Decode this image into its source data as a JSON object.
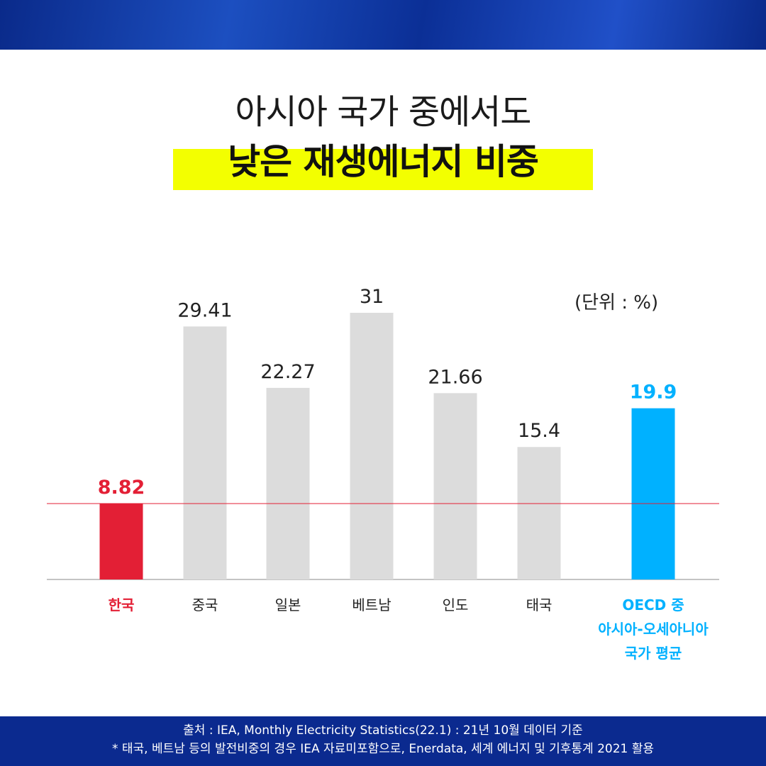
{
  "title": {
    "line1": "아시아 국가 중에서도",
    "line2": "낮은 재생에너지 비중"
  },
  "unit": "(단위 : %)",
  "colors": {
    "highlight": "#f3ff00",
    "korea": "#e31f35",
    "others": "#dcdcdc",
    "oecd": "#00b1ff",
    "footer_bg": "#0b2a8f"
  },
  "chart_data": {
    "type": "bar",
    "categories": [
      "한국",
      "중국",
      "일본",
      "베트남",
      "인도",
      "태국",
      "OECD 중|아시아-오세아니아|국가 평균"
    ],
    "values": [
      8.82,
      29.41,
      22.27,
      31,
      21.66,
      15.4,
      19.9
    ],
    "value_labels": [
      "8.82",
      "29.41",
      "22.27",
      "31",
      "21.66",
      "15.4",
      "19.9"
    ],
    "ylim": [
      0,
      31
    ],
    "reference_line": 8.82,
    "grid": false
  },
  "footer": {
    "line1": "출처 : IEA, Monthly Electricity Statistics(22.1) : 21년 10월 데이터 기준",
    "line2": "* 태국, 베트남 등의 발전비중의 경우 IEA 자료미포함으로, Enerdata, 세계 에너지 및 기후통계 2021 활용"
  }
}
